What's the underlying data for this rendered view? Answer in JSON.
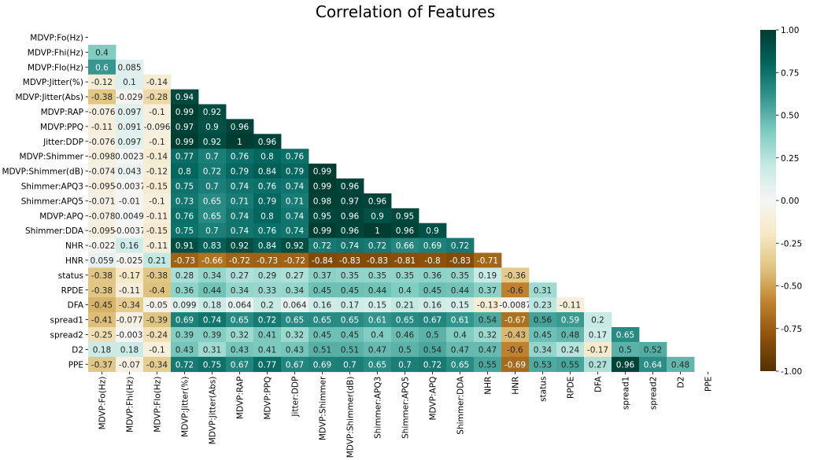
{
  "chart_data": {
    "type": "heatmap",
    "title": "Correlation of Features",
    "labels": [
      "MDVP:Fo(Hz)",
      "MDVP:Fhi(Hz)",
      "MDVP:Flo(Hz)",
      "MDVP:Jitter(%)",
      "MDVP:Jitter(Abs)",
      "MDVP:RAP",
      "MDVP:PPQ",
      "Jitter:DDP",
      "MDVP:Shimmer",
      "MDVP:Shimmer(dB)",
      "Shimmer:APQ3",
      "Shimmer:APQ5",
      "MDVP:APQ",
      "Shimmer:DDA",
      "NHR",
      "HNR",
      "status",
      "RPDE",
      "DFA",
      "spread1",
      "spread2",
      "D2",
      "PPE"
    ],
    "lower_triangle": [
      [],
      [
        "0.4"
      ],
      [
        "0.6",
        "0.085"
      ],
      [
        "-0.12",
        "0.1",
        "-0.14"
      ],
      [
        "-0.38",
        "-0.029",
        "-0.28",
        "0.94"
      ],
      [
        "-0.076",
        "0.097",
        "-0.1",
        "0.99",
        "0.92"
      ],
      [
        "-0.11",
        "0.091",
        "-0.096",
        "0.97",
        "0.9",
        "0.96"
      ],
      [
        "-0.076",
        "0.097",
        "-0.1",
        "0.99",
        "0.92",
        "1",
        "0.96"
      ],
      [
        "-0.098",
        "0.0023",
        "-0.14",
        "0.77",
        "0.7",
        "0.76",
        "0.8",
        "0.76"
      ],
      [
        "-0.074",
        "0.043",
        "-0.12",
        "0.8",
        "0.72",
        "0.79",
        "0.84",
        "0.79",
        "0.99"
      ],
      [
        "-0.095",
        "-0.0037",
        "-0.15",
        "0.75",
        "0.7",
        "0.74",
        "0.76",
        "0.74",
        "0.99",
        "0.96"
      ],
      [
        "-0.071",
        "-0.01",
        "-0.1",
        "0.73",
        "0.65",
        "0.71",
        "0.79",
        "0.71",
        "0.98",
        "0.97",
        "0.96"
      ],
      [
        "-0.078",
        "0.0049",
        "-0.11",
        "0.76",
        "0.65",
        "0.74",
        "0.8",
        "0.74",
        "0.95",
        "0.96",
        "0.9",
        "0.95"
      ],
      [
        "-0.095",
        "-0.0037",
        "-0.15",
        "0.75",
        "0.7",
        "0.74",
        "0.76",
        "0.74",
        "0.99",
        "0.96",
        "1",
        "0.96",
        "0.9"
      ],
      [
        "-0.022",
        "0.16",
        "-0.11",
        "0.91",
        "0.83",
        "0.92",
        "0.84",
        "0.92",
        "0.72",
        "0.74",
        "0.72",
        "0.66",
        "0.69",
        "0.72"
      ],
      [
        "0.059",
        "-0.025",
        "0.21",
        "-0.73",
        "-0.66",
        "-0.72",
        "-0.73",
        "-0.72",
        "-0.84",
        "-0.83",
        "-0.83",
        "-0.81",
        "-0.8",
        "-0.83",
        "-0.71"
      ],
      [
        "-0.38",
        "-0.17",
        "-0.38",
        "0.28",
        "0.34",
        "0.27",
        "0.29",
        "0.27",
        "0.37",
        "0.35",
        "0.35",
        "0.35",
        "0.36",
        "0.35",
        "0.19",
        "-0.36"
      ],
      [
        "-0.38",
        "-0.11",
        "-0.4",
        "0.36",
        "0.44",
        "0.34",
        "0.33",
        "0.34",
        "0.45",
        "0.45",
        "0.44",
        "0.4",
        "0.45",
        "0.44",
        "0.37",
        "-0.6",
        "0.31"
      ],
      [
        "-0.45",
        "-0.34",
        "-0.05",
        "0.099",
        "0.18",
        "0.064",
        "0.2",
        "0.064",
        "0.16",
        "0.17",
        "0.15",
        "0.21",
        "0.16",
        "0.15",
        "-0.13",
        "-0.0087",
        "0.23",
        "-0.11"
      ],
      [
        "-0.41",
        "-0.077",
        "-0.39",
        "0.69",
        "0.74",
        "0.65",
        "0.72",
        "0.65",
        "0.65",
        "0.65",
        "0.61",
        "0.65",
        "0.67",
        "0.61",
        "0.54",
        "-0.67",
        "0.56",
        "0.59",
        "0.2"
      ],
      [
        "-0.25",
        "-0.003",
        "-0.24",
        "0.39",
        "0.39",
        "0.32",
        "0.41",
        "0.32",
        "0.45",
        "0.45",
        "0.4",
        "0.46",
        "0.5",
        "0.4",
        "0.32",
        "-0.43",
        "0.45",
        "0.48",
        "0.17",
        "0.65"
      ],
      [
        "0.18",
        "0.18",
        "-0.1",
        "0.43",
        "0.31",
        "0.43",
        "0.41",
        "0.43",
        "0.51",
        "0.51",
        "0.47",
        "0.5",
        "0.54",
        "0.47",
        "0.47",
        "-0.6",
        "0.34",
        "0.24",
        "-0.17",
        "0.5",
        "0.52"
      ],
      [
        "-0.37",
        "-0.07",
        "-0.34",
        "0.72",
        "0.75",
        "0.67",
        "0.77",
        "0.67",
        "0.69",
        "0.7",
        "0.65",
        "0.7",
        "0.72",
        "0.65",
        "0.55",
        "-0.69",
        "0.53",
        "0.55",
        "0.27",
        "0.96",
        "0.64",
        "0.48"
      ]
    ],
    "colorbar": {
      "range": [
        -1,
        1
      ],
      "ticks": [
        "1.00",
        "0.75",
        "0.50",
        "0.25",
        "0.00",
        "-0.25",
        "-0.50",
        "-0.75",
        "-1.00"
      ],
      "colormap": "BrBG"
    }
  }
}
